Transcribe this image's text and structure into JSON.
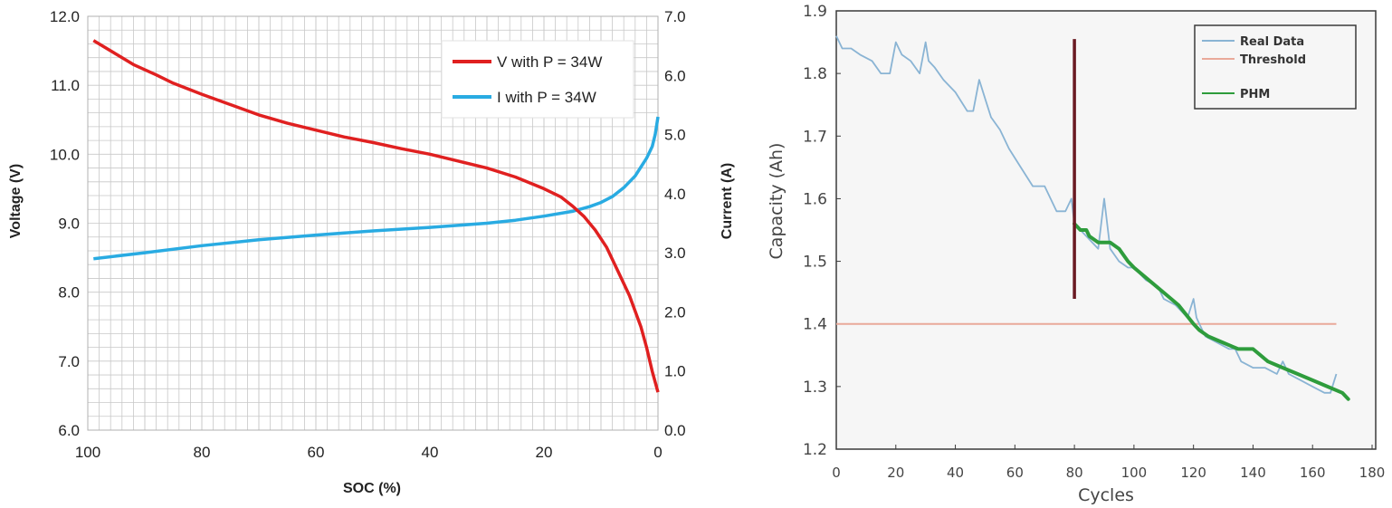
{
  "chart_data": [
    {
      "type": "line",
      "xlabel": "SOC (%)",
      "ylabel": "Voltage (V)",
      "y2label": "Current (A)",
      "xlim": [
        100,
        0
      ],
      "ylim": [
        6.0,
        12.0
      ],
      "y2lim": [
        0.0,
        7.0
      ],
      "xticks": [
        "100",
        "80",
        "60",
        "40",
        "20",
        "0"
      ],
      "yticks": [
        "6.0",
        "7.0",
        "8.0",
        "9.0",
        "10.0",
        "11.0",
        "12.0"
      ],
      "y2ticks": [
        "0.0",
        "1.0",
        "2.0",
        "3.0",
        "4.0",
        "5.0",
        "6.0",
        "7.0"
      ],
      "grid": true,
      "legend_position": "top-right",
      "series": [
        {
          "name": "V with P = 34W",
          "axis": "left",
          "color": "#e02020",
          "x": [
            99,
            95,
            92,
            88,
            85,
            80,
            75,
            70,
            65,
            60,
            55,
            50,
            45,
            40,
            35,
            30,
            25,
            20,
            17,
            15,
            13,
            11,
            9,
            7,
            5,
            3,
            2,
            1,
            0
          ],
          "y": [
            11.65,
            11.45,
            11.3,
            11.15,
            11.03,
            10.87,
            10.72,
            10.57,
            10.45,
            10.35,
            10.25,
            10.17,
            10.08,
            10.0,
            9.9,
            9.8,
            9.67,
            9.5,
            9.38,
            9.25,
            9.1,
            8.9,
            8.65,
            8.3,
            7.95,
            7.5,
            7.2,
            6.85,
            6.55
          ]
        },
        {
          "name": "I with P = 34W",
          "axis": "right",
          "color": "#29abe2",
          "x": [
            99,
            90,
            80,
            70,
            60,
            50,
            40,
            30,
            25,
            20,
            15,
            12,
            10,
            8,
            6,
            4,
            3,
            2,
            1,
            0.5,
            0
          ],
          "y": [
            2.9,
            3.0,
            3.12,
            3.22,
            3.3,
            3.37,
            3.43,
            3.5,
            3.55,
            3.62,
            3.7,
            3.78,
            3.85,
            3.95,
            4.1,
            4.3,
            4.45,
            4.6,
            4.8,
            5.0,
            5.3
          ]
        }
      ]
    },
    {
      "type": "line",
      "xlabel": "Cycles",
      "ylabel": "Capacity (Ah)",
      "xlim": [
        0,
        180
      ],
      "ylim": [
        1.2,
        1.9
      ],
      "xticks": [
        "0",
        "20",
        "40",
        "60",
        "80",
        "100",
        "120",
        "140",
        "160",
        "180"
      ],
      "yticks": [
        "1.2",
        "1.3",
        "1.4",
        "1.5",
        "1.6",
        "1.7",
        "1.8",
        "1.9"
      ],
      "grid": false,
      "legend_position": "top-right",
      "prediction_start_cycle": 80,
      "series": [
        {
          "name": "Real Data",
          "color": "#8ab4d4",
          "x": [
            0,
            2,
            5,
            8,
            12,
            15,
            18,
            20,
            22,
            25,
            28,
            30,
            31,
            33,
            36,
            40,
            44,
            46,
            48,
            50,
            52,
            55,
            58,
            62,
            66,
            70,
            74,
            77,
            79,
            80,
            82,
            84,
            86,
            88,
            90,
            92,
            95,
            98,
            100,
            104,
            108,
            110,
            114,
            118,
            120,
            121,
            122,
            124,
            128,
            132,
            134,
            136,
            140,
            144,
            148,
            150,
            152,
            156,
            160,
            164,
            166,
            168
          ],
          "y": [
            1.86,
            1.84,
            1.84,
            1.83,
            1.82,
            1.8,
            1.8,
            1.85,
            1.83,
            1.82,
            1.8,
            1.85,
            1.82,
            1.81,
            1.79,
            1.77,
            1.74,
            1.74,
            1.79,
            1.76,
            1.73,
            1.71,
            1.68,
            1.65,
            1.62,
            1.62,
            1.58,
            1.58,
            1.6,
            1.56,
            1.55,
            1.54,
            1.53,
            1.52,
            1.6,
            1.52,
            1.5,
            1.49,
            1.49,
            1.47,
            1.46,
            1.44,
            1.43,
            1.41,
            1.44,
            1.41,
            1.4,
            1.38,
            1.37,
            1.36,
            1.36,
            1.34,
            1.33,
            1.33,
            1.32,
            1.34,
            1.32,
            1.31,
            1.3,
            1.29,
            1.29,
            1.32
          ]
        },
        {
          "name": "Threshold",
          "color": "#e9a99a",
          "x": [
            0,
            168
          ],
          "y": [
            1.4,
            1.4
          ]
        },
        {
          "name": "PHM",
          "color": "#2e9c3c",
          "x": [
            80,
            82,
            84,
            85,
            88,
            92,
            95,
            98,
            100,
            105,
            110,
            115,
            120,
            122,
            125,
            130,
            135,
            140,
            145,
            150,
            155,
            160,
            165,
            170,
            172
          ],
          "y": [
            1.56,
            1.55,
            1.55,
            1.54,
            1.53,
            1.53,
            1.52,
            1.5,
            1.49,
            1.47,
            1.45,
            1.43,
            1.4,
            1.39,
            1.38,
            1.37,
            1.36,
            1.36,
            1.34,
            1.33,
            1.32,
            1.31,
            1.3,
            1.29,
            1.28
          ]
        }
      ]
    }
  ]
}
